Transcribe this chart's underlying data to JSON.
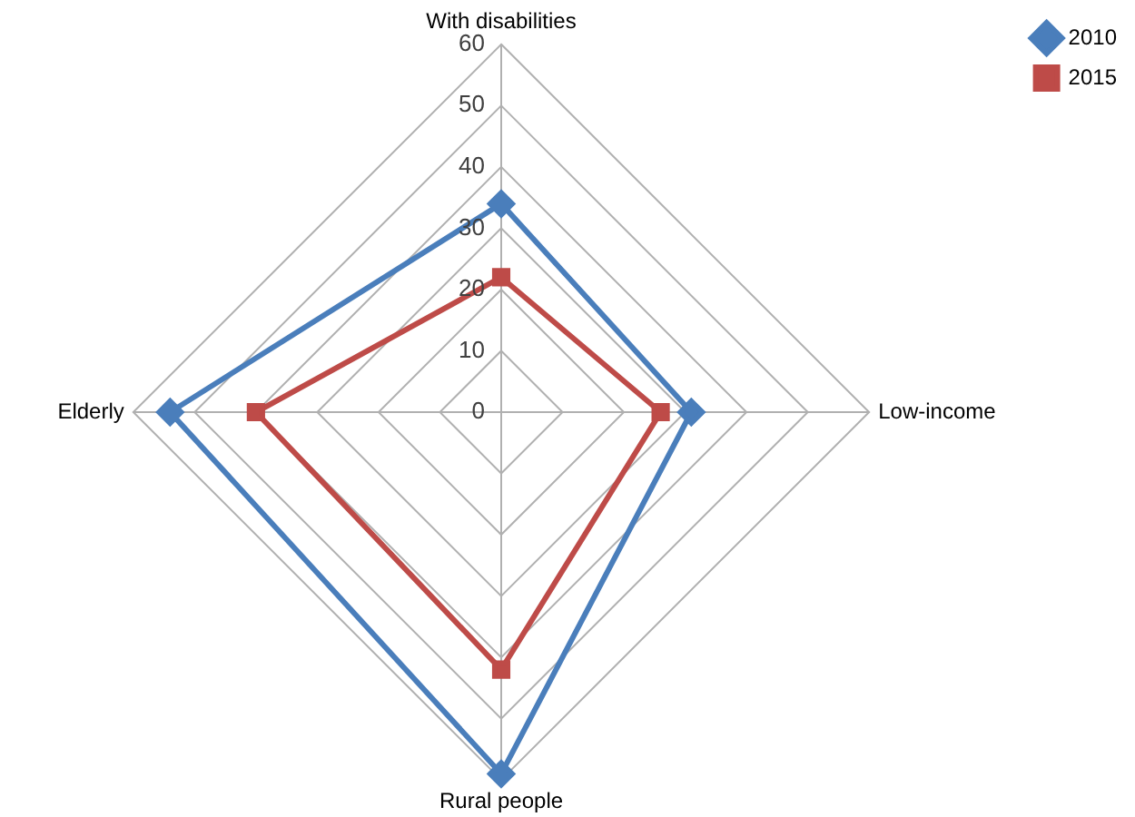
{
  "chart_data": {
    "type": "radar",
    "categories": [
      "With disabilities",
      "Low-income",
      "Rural people",
      "Elderly"
    ],
    "series": [
      {
        "name": "2010",
        "color": "#4a7ebb",
        "marker": "diamond",
        "values": [
          34,
          31,
          59,
          54
        ]
      },
      {
        "name": "2015",
        "color": "#be4b48",
        "marker": "square",
        "values": [
          22,
          26,
          42,
          40
        ]
      }
    ],
    "ylim": [
      0,
      60
    ],
    "yticks": [
      0,
      10,
      20,
      30,
      40,
      50,
      60
    ],
    "grid": true,
    "legend": "top right"
  }
}
